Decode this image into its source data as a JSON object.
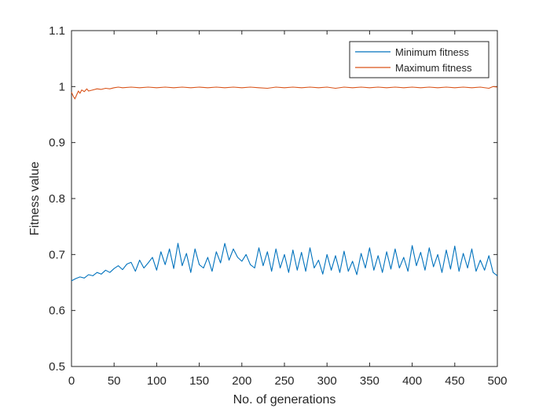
{
  "chart_data": {
    "type": "line",
    "xlabel": "No. of generations",
    "ylabel": "Fitness value",
    "xlim": [
      0,
      500
    ],
    "ylim": [
      0.5,
      1.1
    ],
    "xticks": [
      "0",
      "50",
      "100",
      "150",
      "200",
      "250",
      "300",
      "350",
      "400",
      "450",
      "500"
    ],
    "yticks": [
      "0.5",
      "0.6",
      "0.7",
      "0.8",
      "0.9",
      "1",
      "1.1"
    ],
    "grid": false,
    "legend_position": "top-right",
    "series": [
      {
        "name": "Minimum fitness",
        "color": "#0072BD",
        "x": [
          0,
          5,
          10,
          15,
          20,
          25,
          30,
          35,
          40,
          45,
          50,
          55,
          60,
          65,
          70,
          75,
          80,
          85,
          90,
          95,
          100,
          105,
          110,
          115,
          120,
          125,
          130,
          135,
          140,
          145,
          150,
          155,
          160,
          165,
          170,
          175,
          180,
          185,
          190,
          195,
          200,
          205,
          210,
          215,
          220,
          225,
          230,
          235,
          240,
          245,
          250,
          255,
          260,
          265,
          270,
          275,
          280,
          285,
          290,
          295,
          300,
          305,
          310,
          315,
          320,
          325,
          330,
          335,
          340,
          345,
          350,
          355,
          360,
          365,
          370,
          375,
          380,
          385,
          390,
          395,
          400,
          405,
          410,
          415,
          420,
          425,
          430,
          435,
          440,
          445,
          450,
          455,
          460,
          465,
          470,
          475,
          480,
          485,
          490,
          495,
          500
        ],
        "values": [
          0.653,
          0.657,
          0.66,
          0.658,
          0.664,
          0.662,
          0.668,
          0.665,
          0.672,
          0.668,
          0.675,
          0.68,
          0.673,
          0.683,
          0.686,
          0.67,
          0.69,
          0.676,
          0.685,
          0.695,
          0.672,
          0.705,
          0.682,
          0.71,
          0.675,
          0.72,
          0.68,
          0.702,
          0.668,
          0.71,
          0.682,
          0.676,
          0.695,
          0.67,
          0.705,
          0.685,
          0.72,
          0.69,
          0.71,
          0.695,
          0.688,
          0.7,
          0.682,
          0.676,
          0.712,
          0.68,
          0.705,
          0.67,
          0.71,
          0.676,
          0.7,
          0.668,
          0.708,
          0.672,
          0.704,
          0.67,
          0.712,
          0.676,
          0.69,
          0.665,
          0.7,
          0.672,
          0.698,
          0.668,
          0.706,
          0.67,
          0.688,
          0.664,
          0.702,
          0.676,
          0.712,
          0.672,
          0.698,
          0.668,
          0.705,
          0.674,
          0.71,
          0.676,
          0.695,
          0.67,
          0.716,
          0.68,
          0.704,
          0.672,
          0.712,
          0.678,
          0.7,
          0.668,
          0.708,
          0.674,
          0.715,
          0.67,
          0.702,
          0.676,
          0.71,
          0.67,
          0.69,
          0.672,
          0.698,
          0.668,
          0.662
        ]
      },
      {
        "name": "Maximum fitness",
        "color": "#D95319",
        "x": [
          0,
          2,
          4,
          6,
          8,
          10,
          12,
          15,
          18,
          20,
          25,
          30,
          35,
          40,
          45,
          50,
          55,
          60,
          70,
          80,
          90,
          100,
          110,
          120,
          130,
          140,
          150,
          160,
          170,
          180,
          190,
          200,
          210,
          220,
          230,
          240,
          250,
          260,
          270,
          280,
          290,
          300,
          310,
          320,
          330,
          340,
          350,
          360,
          370,
          380,
          390,
          400,
          410,
          420,
          430,
          440,
          450,
          460,
          470,
          480,
          490,
          495,
          500
        ],
        "values": [
          0.99,
          0.983,
          0.978,
          0.985,
          0.992,
          0.988,
          0.994,
          0.991,
          0.996,
          0.992,
          0.994,
          0.996,
          0.995,
          0.997,
          0.996,
          0.998,
          0.999,
          0.998,
          0.999,
          0.998,
          0.999,
          0.998,
          0.999,
          0.998,
          0.999,
          0.998,
          0.999,
          0.998,
          0.999,
          0.998,
          0.999,
          0.998,
          0.999,
          0.998,
          0.997,
          0.999,
          0.998,
          0.999,
          0.998,
          0.999,
          0.998,
          0.999,
          0.997,
          0.999,
          0.998,
          0.999,
          0.998,
          0.999,
          0.998,
          0.999,
          0.998,
          0.999,
          0.998,
          0.999,
          0.998,
          0.999,
          0.998,
          0.999,
          0.998,
          0.999,
          0.997,
          1.0,
          0.999
        ]
      }
    ]
  }
}
